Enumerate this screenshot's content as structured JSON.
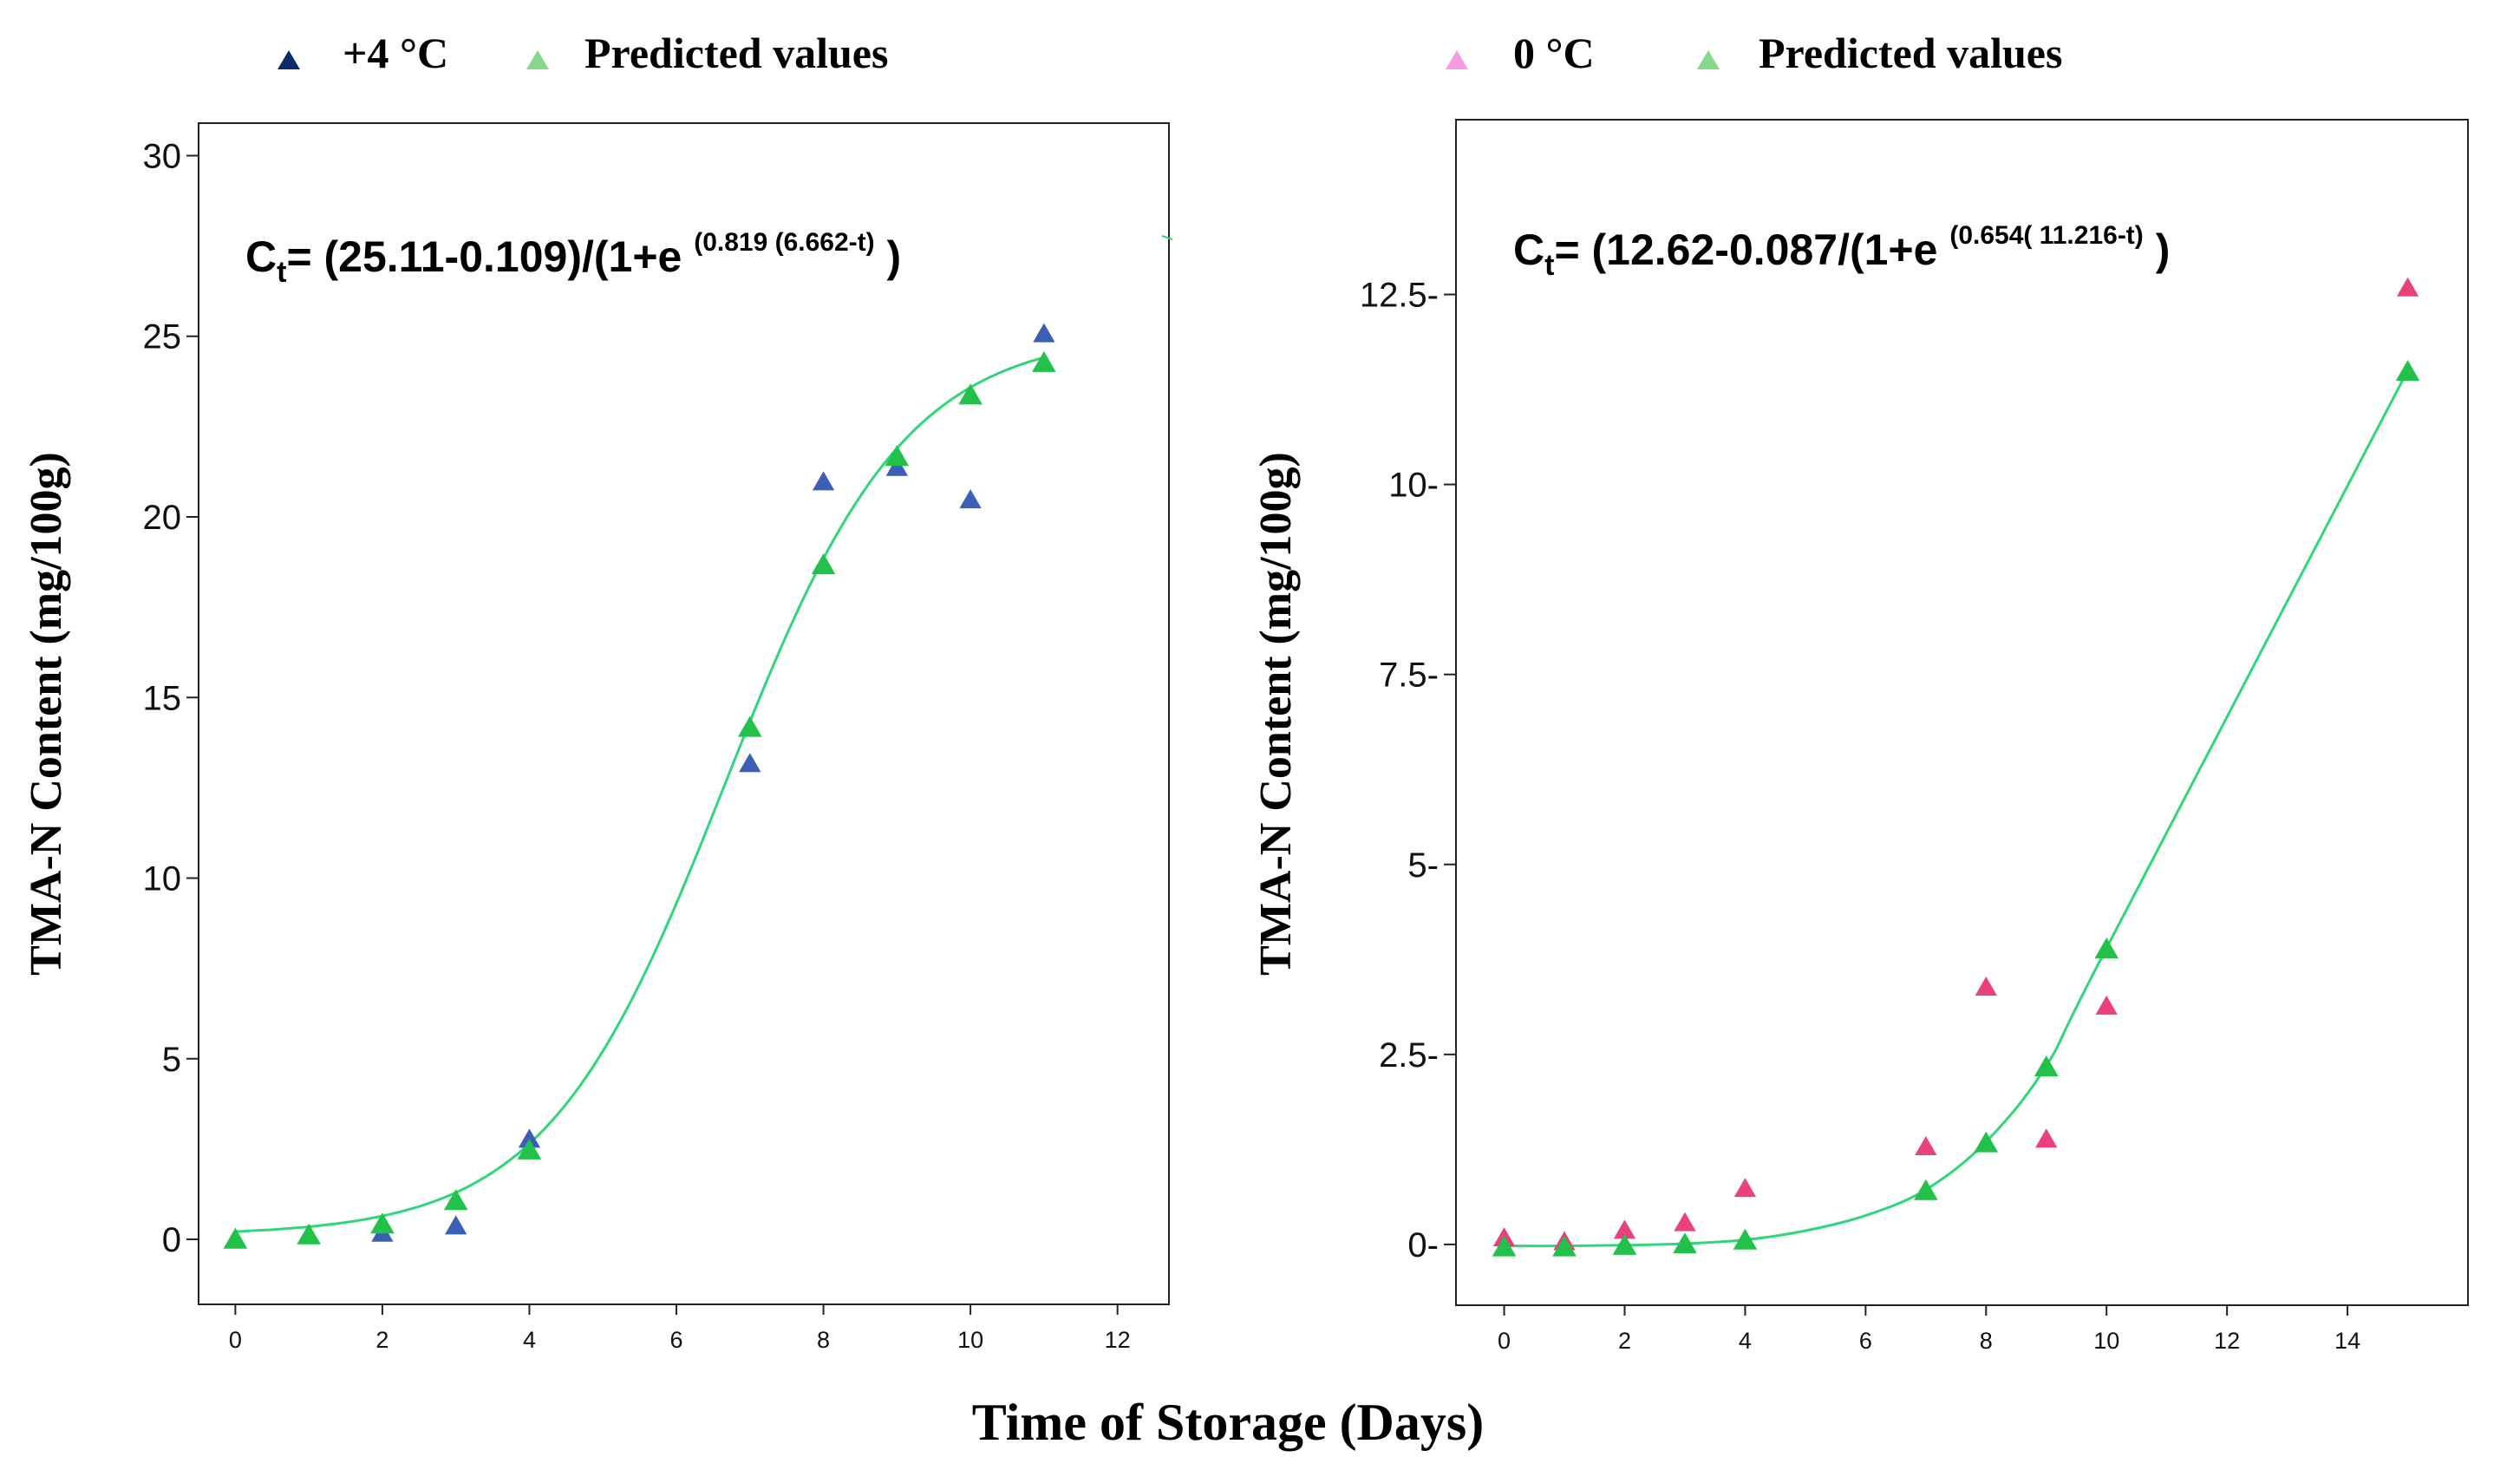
{
  "figure": {
    "shared_xlabel": "Time of Storage (Days)",
    "colors": {
      "predicted": "#21c14a",
      "curve": "#2fd67a",
      "left_observed": "#3a5fb5",
      "right_observed": "#e8417d",
      "left_legend_observed": "#0d2a6e",
      "right_legend_observed": "#f59be6",
      "legend_predicted": "#86d98a"
    }
  },
  "chart_data": [
    {
      "type": "scatter",
      "title": "",
      "xlabel": "Time of Storage (Days)",
      "ylabel": "TMA-N Content (mg/100g)",
      "xlim": [
        -0.5,
        12.7
      ],
      "ylim": [
        -1.8,
        30.9
      ],
      "xticks": [
        0,
        2,
        4,
        6,
        8,
        10,
        12
      ],
      "xtick_labels": [
        "0",
        "2",
        "4",
        "6",
        "8",
        "10",
        "12"
      ],
      "yticks": [
        0,
        5,
        10,
        15,
        20,
        25,
        30
      ],
      "ytick_labels": [
        "0",
        "5",
        "10",
        "15",
        "20",
        "25",
        "30"
      ],
      "equation": {
        "lead": "C",
        "sub": "t",
        "body": "= (25.11-0.109)/(1+e ",
        "exponent": "(0.819 (6.662-t)",
        "tail": " )"
      },
      "legend": [
        {
          "label": "+4 °C",
          "color": "#0d2a6e"
        },
        {
          "label": "Predicted values",
          "color": "#86d98a"
        }
      ],
      "series": [
        {
          "name": "+4 °C",
          "color": "#3a5fb5",
          "x": [
            0,
            1,
            2,
            3,
            4,
            7,
            8,
            9,
            10,
            11
          ],
          "y": [
            0.05,
            0.15,
            0.2,
            0.4,
            2.8,
            13.2,
            21.0,
            21.4,
            20.5,
            25.1
          ]
        },
        {
          "name": "Predicted values",
          "color": "#21c14a",
          "x": [
            0,
            1,
            2,
            3,
            4,
            7,
            8,
            9,
            10,
            11
          ],
          "y": [
            0.03,
            0.15,
            0.45,
            1.1,
            2.5,
            14.2,
            18.7,
            21.7,
            23.4,
            24.3
          ]
        }
      ],
      "fit_curve": {
        "type": "logistic",
        "upper": 25.11,
        "lower": 0.109,
        "k": 0.819,
        "t0": 6.662,
        "x_range": [
          0,
          11
        ],
        "color": "#2fd67a"
      }
    },
    {
      "type": "scatter",
      "title": "",
      "xlabel": "Time of Storage (Days)",
      "ylabel": "TMA-N Content (mg/100g)",
      "xlim": [
        -0.8,
        16.0
      ],
      "ylim": [
        -0.8,
        14.8
      ],
      "xticks": [
        0,
        2,
        4,
        6,
        8,
        10,
        12,
        14
      ],
      "xtick_labels": [
        "0",
        "2",
        "4",
        "6",
        "8",
        "10",
        "12",
        "14"
      ],
      "yticks": [
        0,
        2.5,
        5,
        7.5,
        10,
        12.5
      ],
      "ytick_labels": [
        "0-",
        "2.5-",
        "5-",
        "7.5-",
        "10-",
        "12.5-"
      ],
      "equation": {
        "lead": "C",
        "sub": "t",
        "body": "= (12.62-0.087/(1+e ",
        "exponent": "(0.654( 11.216-t)",
        "tail": " )"
      },
      "legend": [
        {
          "label": "0 °C",
          "color": "#f59be6"
        },
        {
          "label": "Predicted values",
          "color": "#86d98a"
        }
      ],
      "series": [
        {
          "name": "0 °C",
          "color": "#e8417d",
          "x": [
            0,
            1,
            2,
            3,
            4,
            7,
            8,
            9,
            10,
            15
          ],
          "y": [
            0.1,
            0.05,
            0.2,
            0.3,
            0.75,
            1.3,
            3.4,
            1.4,
            3.15,
            12.6
          ]
        },
        {
          "name": "Predicted values",
          "color": "#21c14a",
          "x": [
            0,
            1,
            2,
            3,
            4,
            7,
            8,
            9,
            10,
            15
          ],
          "y": [
            -0.02,
            -0.02,
            0.0,
            0.02,
            0.07,
            0.72,
            1.35,
            2.35,
            3.9,
            11.5
          ]
        }
      ],
      "fit_curve": {
        "type": "spline",
        "x": [
          0,
          1,
          2,
          3,
          4,
          5,
          6,
          7,
          8,
          9,
          10,
          15
        ],
        "y": [
          -0.02,
          -0.02,
          -0.01,
          0.01,
          0.06,
          0.18,
          0.38,
          0.72,
          1.35,
          2.35,
          3.9,
          11.5
        ],
        "color": "#2fd67a"
      }
    }
  ]
}
